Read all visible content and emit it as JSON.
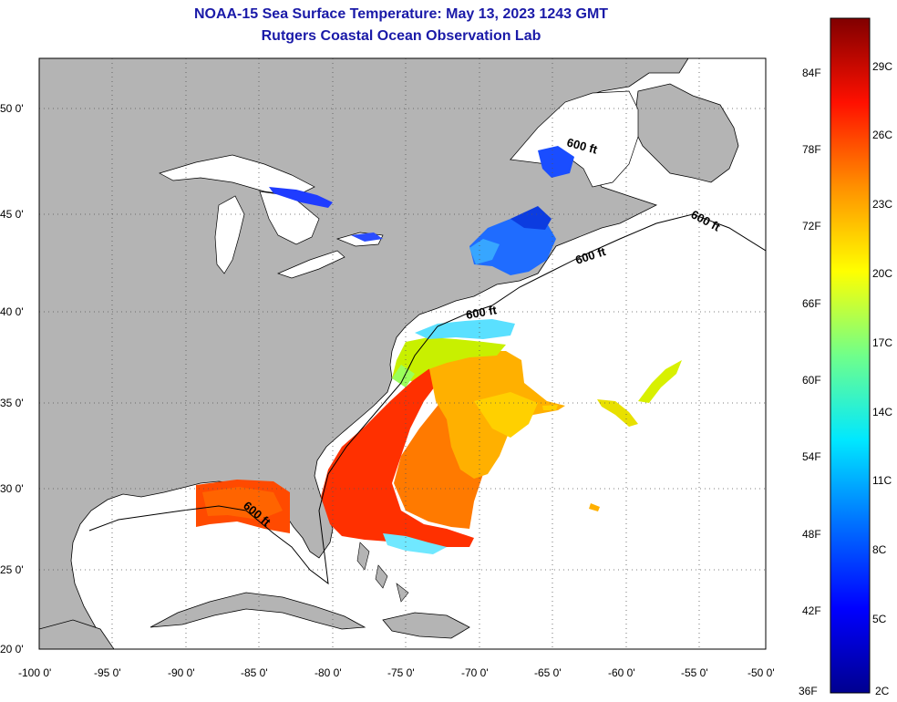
{
  "title": {
    "line1": "NOAA-15 Sea Surface Temperature:  May 13, 2023 1243 GMT",
    "line2": "Rutgers Coastal Ocean Observation Lab"
  },
  "axes": {
    "lat_labels": [
      "50 0'",
      "45 0'",
      "40 0'",
      "35 0'",
      "30 0'",
      "25 0'",
      "20 0'"
    ],
    "lon_labels": [
      "-100 0'",
      "-95 0'",
      "-90 0'",
      "-85 0'",
      "-80 0'",
      "-75 0'",
      "-70 0'",
      "-65 0'",
      "-60 0'",
      "-55 0'",
      "-50 0'"
    ],
    "lat_values": [
      50,
      45,
      40,
      35,
      30,
      25,
      20
    ],
    "lon_values": [
      -100,
      -95,
      -90,
      -85,
      -80,
      -75,
      -70,
      -65,
      -60,
      -55,
      -50
    ]
  },
  "contour_labels": [
    "600 ft",
    "600 ft",
    "600 ft",
    "600 ft",
    "600 ft"
  ],
  "colorbar": {
    "fahrenheit_labels": [
      "84F",
      "78F",
      "72F",
      "66F",
      "60F",
      "54F",
      "48F",
      "42F",
      "36F"
    ],
    "celsius_labels": [
      "29C",
      "26C",
      "23C",
      "20C",
      "17C",
      "14C",
      "11C",
      "8C",
      "5C",
      "2C"
    ],
    "colors": [
      "#00008f",
      "#0000ff",
      "#0080ff",
      "#00ffff",
      "#80ff80",
      "#ffff00",
      "#ff8000",
      "#ff0000",
      "#800000"
    ]
  },
  "colors": {
    "land": "#b4b4b4",
    "water": "#ffffff",
    "title": "#1a1aa8"
  }
}
